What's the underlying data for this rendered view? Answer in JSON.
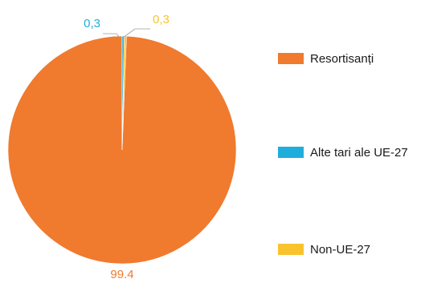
{
  "chart_data": {
    "type": "pie",
    "slices": [
      {
        "label": "Resortisanți",
        "value": 99.4,
        "display": "99.4",
        "color": "#F07A2E"
      },
      {
        "label": "Alte tari ale UE-27",
        "value": 0.3,
        "display": "0,3",
        "color": "#1FAEDC"
      },
      {
        "label": "Non-UE-27",
        "value": 0.3,
        "display": "0,3",
        "color": "#F9C32E"
      }
    ],
    "legend_position": "right"
  }
}
